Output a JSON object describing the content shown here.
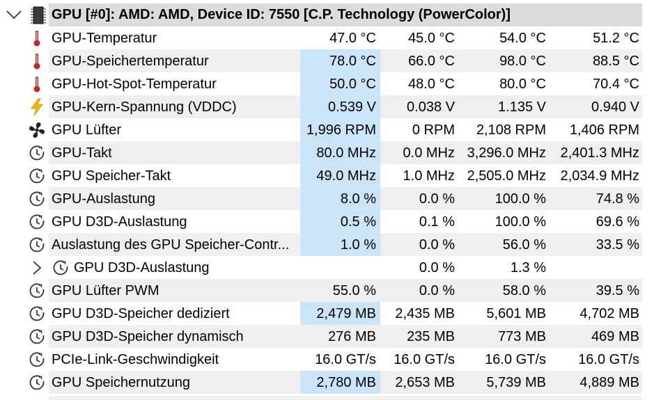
{
  "group": {
    "title": "GPU [#0]: AMD: AMD, Device ID: 7550 [C.P. Technology (PowerColor)]",
    "icon": "chip-icon",
    "expanded": true
  },
  "colors": {
    "alt_row": "#efefef",
    "header_bg": "#dcdcdc",
    "highlight": "#cce4f7",
    "temp_icon": "#c62828",
    "volt_icon": "#f5b800"
  },
  "rows": [
    {
      "label": "GPU-Temperatur",
      "icon": "thermometer-icon",
      "values": [
        "47.0 °C",
        "45.0 °C",
        "54.0 °C",
        "51.2 °C"
      ],
      "highlight": false
    },
    {
      "label": "GPU-Speichertemperatur",
      "icon": "thermometer-icon",
      "values": [
        "78.0 °C",
        "66.0 °C",
        "98.0 °C",
        "88.5 °C"
      ],
      "highlight": true
    },
    {
      "label": "GPU-Hot-Spot-Temperatur",
      "icon": "thermometer-icon",
      "values": [
        "50.0 °C",
        "48.0 °C",
        "80.0 °C",
        "70.4 °C"
      ],
      "highlight": true
    },
    {
      "label": "GPU-Kern-Spannung (VDDC)",
      "icon": "lightning-icon",
      "values": [
        "0.539 V",
        "0.038 V",
        "1.135 V",
        "0.940 V"
      ],
      "highlight": true
    },
    {
      "label": "GPU Lüfter",
      "icon": "fan-icon",
      "values": [
        "1,996 RPM",
        "0 RPM",
        "2,108 RPM",
        "1,406 RPM"
      ],
      "highlight": true
    },
    {
      "label": "GPU-Takt",
      "icon": "clock-icon",
      "values": [
        "80.0 MHz",
        "0.0 MHz",
        "3,296.0 MHz",
        "2,401.3 MHz"
      ],
      "highlight": true
    },
    {
      "label": "GPU Speicher-Takt",
      "icon": "clock-icon",
      "values": [
        "49.0 MHz",
        "1.0 MHz",
        "2,505.0 MHz",
        "2,034.9 MHz"
      ],
      "highlight": true
    },
    {
      "label": "GPU-Auslastung",
      "icon": "clock-icon",
      "values": [
        "8.0 %",
        "0.0 %",
        "100.0 %",
        "74.8 %"
      ],
      "highlight": true
    },
    {
      "label": "GPU D3D-Auslastung",
      "icon": "clock-icon",
      "values": [
        "0.5 %",
        "0.1 %",
        "100.0 %",
        "69.6 %"
      ],
      "highlight": true
    },
    {
      "label": "Auslastung des GPU Speicher-Contr...",
      "icon": "clock-icon",
      "values": [
        "1.0 %",
        "0.0 %",
        "56.0 %",
        "33.5 %"
      ],
      "highlight": true
    },
    {
      "label": "GPU D3D-Auslastung",
      "icon": "clock-icon",
      "values": [
        "",
        "0.0 %",
        "1.3 %",
        ""
      ],
      "highlight": false,
      "collapsible": true
    },
    {
      "label": "GPU Lüfter PWM",
      "icon": "clock-icon",
      "values": [
        "55.0 %",
        "0.0 %",
        "58.0 %",
        "39.5 %"
      ],
      "highlight": false
    },
    {
      "label": "GPU D3D-Speicher dediziert",
      "icon": "clock-icon",
      "values": [
        "2,479 MB",
        "2,435 MB",
        "5,601 MB",
        "4,702 MB"
      ],
      "highlight": true
    },
    {
      "label": "GPU D3D-Speicher dynamisch",
      "icon": "clock-icon",
      "values": [
        "276 MB",
        "235 MB",
        "773 MB",
        "469 MB"
      ],
      "highlight": false
    },
    {
      "label": "PCIe-Link-Geschwindigkeit",
      "icon": "clock-icon",
      "values": [
        "16.0 GT/s",
        "16.0 GT/s",
        "16.0 GT/s",
        "16.0 GT/s"
      ],
      "highlight": false
    },
    {
      "label": "GPU Speichernutzung",
      "icon": "clock-icon",
      "values": [
        "2,780 MB",
        "2,653 MB",
        "5,739 MB",
        "4,889 MB"
      ],
      "highlight": true
    }
  ]
}
